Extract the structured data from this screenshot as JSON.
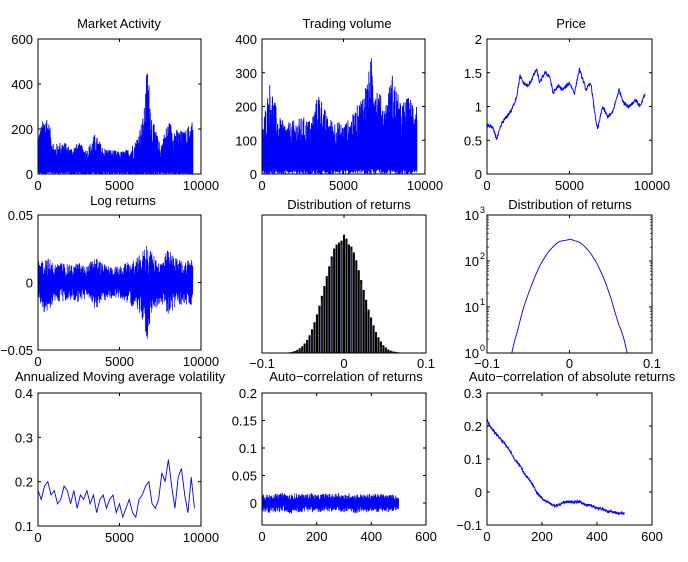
{
  "chart_data": [
    {
      "id": "market-activity",
      "type": "line",
      "title": "Market Activity",
      "xlim": [
        0,
        10000
      ],
      "ylim": [
        0,
        600
      ],
      "xticks": [
        0,
        5000,
        10000
      ],
      "yticks": [
        0,
        200,
        400,
        600
      ],
      "color": "#0000ff",
      "series": [
        {
          "x": [
            0,
            500,
            1000,
            1500,
            2000,
            2500,
            3000,
            3500,
            4000,
            4500,
            5000,
            5500,
            6000,
            6500,
            6700,
            7000,
            7500,
            8000,
            8500,
            9000,
            9500
          ],
          "y": [
            180,
            280,
            130,
            150,
            120,
            140,
            110,
            180,
            120,
            110,
            100,
            110,
            150,
            270,
            500,
            250,
            130,
            240,
            200,
            190,
            250
          ]
        }
      ]
    },
    {
      "id": "trading-volume",
      "type": "line",
      "title": "Trading volume",
      "xlim": [
        0,
        10000
      ],
      "ylim": [
        0,
        400
      ],
      "xticks": [
        0,
        5000,
        10000
      ],
      "yticks": [
        0,
        100,
        200,
        300,
        400
      ],
      "color": "#0000ff",
      "series": [
        {
          "x": [
            0,
            500,
            1000,
            1500,
            2000,
            2500,
            3000,
            3500,
            4000,
            4500,
            5000,
            5500,
            6000,
            6500,
            6700,
            7000,
            7500,
            8000,
            8500,
            9000,
            9500
          ],
          "y": [
            140,
            280,
            170,
            150,
            160,
            170,
            160,
            250,
            170,
            160,
            150,
            170,
            220,
            290,
            350,
            280,
            200,
            300,
            210,
            230,
            220
          ]
        }
      ]
    },
    {
      "id": "price",
      "type": "line",
      "title": "Price",
      "xlim": [
        0,
        10000
      ],
      "ylim": [
        0,
        2
      ],
      "xticks": [
        0,
        5000,
        10000
      ],
      "yticks": [
        0,
        0.5,
        1,
        1.5,
        2
      ],
      "color": "#0000ff",
      "series": [
        {
          "x": [
            0,
            300,
            600,
            900,
            1200,
            1500,
            1800,
            2000,
            2200,
            2500,
            2800,
            3000,
            3200,
            3500,
            3800,
            4000,
            4300,
            4600,
            5000,
            5300,
            5600,
            6000,
            6300,
            6500,
            6700,
            7000,
            7300,
            7600,
            8000,
            8300,
            8600,
            9000,
            9300,
            9600
          ],
          "y": [
            0.72,
            0.7,
            0.52,
            0.75,
            0.85,
            0.95,
            1.15,
            1.45,
            1.35,
            1.3,
            1.45,
            1.55,
            1.35,
            1.5,
            1.45,
            1.2,
            1.3,
            1.25,
            1.35,
            1.2,
            1.55,
            1.25,
            1.35,
            0.95,
            0.65,
            1.0,
            0.85,
            0.9,
            1.25,
            1.05,
            1.0,
            1.1,
            1.0,
            1.2
          ]
        }
      ]
    },
    {
      "id": "log-returns",
      "type": "line",
      "title": "Log returns",
      "xlim": [
        0,
        10000
      ],
      "ylim": [
        -0.05,
        0.05
      ],
      "xticks": [
        0,
        5000,
        10000
      ],
      "yticks": [
        -0.05,
        0,
        0.05
      ],
      "ytick_labels": [
        "−0.05",
        "0",
        "0.05"
      ],
      "color": "#0000ff",
      "series": [
        {
          "x": [
            0,
            500,
            1000,
            1500,
            2000,
            2500,
            3000,
            3500,
            4000,
            4500,
            5000,
            5500,
            6000,
            6500,
            6700,
            7000,
            7500,
            8000,
            8500,
            9000,
            9500
          ],
          "y_upper": [
            0.015,
            0.02,
            0.014,
            0.015,
            0.013,
            0.015,
            0.012,
            0.02,
            0.014,
            0.012,
            0.012,
            0.015,
            0.017,
            0.025,
            0.032,
            0.022,
            0.015,
            0.025,
            0.018,
            0.016,
            0.02
          ],
          "y_lower": [
            -0.015,
            -0.025,
            -0.014,
            -0.015,
            -0.013,
            -0.015,
            -0.012,
            -0.02,
            -0.014,
            -0.012,
            -0.012,
            -0.015,
            -0.02,
            -0.03,
            -0.045,
            -0.022,
            -0.015,
            -0.025,
            -0.018,
            -0.016,
            -0.02
          ]
        }
      ]
    },
    {
      "id": "distribution-linear",
      "type": "bar",
      "title": "Distribution of  returns",
      "xlim": [
        -0.1,
        0.1
      ],
      "ylim": [
        0,
        350
      ],
      "xticks": [
        -0.1,
        0,
        0.1
      ],
      "xtick_labels": [
        "−0.1",
        "0",
        "0.1"
      ],
      "yticks": [],
      "color": "#000000",
      "bins": [
        -0.066,
        -0.063,
        -0.06,
        -0.057,
        -0.054,
        -0.051,
        -0.048,
        -0.045,
        -0.042,
        -0.039,
        -0.036,
        -0.033,
        -0.03,
        -0.027,
        -0.024,
        -0.021,
        -0.018,
        -0.015,
        -0.012,
        -0.009,
        -0.006,
        -0.003,
        0,
        0.003,
        0.006,
        0.009,
        0.012,
        0.015,
        0.018,
        0.021,
        0.024,
        0.027,
        0.03,
        0.033,
        0.036,
        0.039,
        0.042,
        0.045,
        0.048,
        0.051,
        0.054,
        0.057,
        0.06,
        0.063,
        0.066
      ],
      "values": [
        2,
        3,
        5,
        8,
        12,
        17,
        24,
        33,
        45,
        60,
        78,
        98,
        120,
        145,
        170,
        195,
        220,
        245,
        265,
        275,
        280,
        285,
        300,
        290,
        275,
        270,
        255,
        235,
        210,
        185,
        160,
        135,
        110,
        90,
        70,
        53,
        40,
        29,
        20,
        14,
        9,
        6,
        4,
        3,
        2
      ]
    },
    {
      "id": "distribution-log",
      "type": "line",
      "title": "Distribution of  returns",
      "yscale": "log",
      "xlim": [
        -0.1,
        0.1
      ],
      "ylim": [
        1,
        1000
      ],
      "xticks": [
        -0.1,
        0,
        0.1
      ],
      "xtick_labels": [
        "−0.1",
        "0",
        "0.1"
      ],
      "yticks": [
        1,
        10,
        100,
        1000
      ],
      "ytick_labels": [
        "10",
        "10",
        "10",
        "10"
      ],
      "ytick_exponents": [
        "0",
        "1",
        "2",
        "3"
      ],
      "color": "#0000ff",
      "series": [
        {
          "x": [
            -0.07,
            -0.066,
            -0.063,
            -0.06,
            -0.057,
            -0.054,
            -0.051,
            -0.048,
            -0.045,
            -0.042,
            -0.039,
            -0.036,
            -0.033,
            -0.03,
            -0.027,
            -0.024,
            -0.021,
            -0.018,
            -0.015,
            -0.012,
            -0.009,
            -0.006,
            -0.003,
            0,
            0.003,
            0.006,
            0.009,
            0.012,
            0.015,
            0.018,
            0.021,
            0.024,
            0.027,
            0.03,
            0.033,
            0.036,
            0.039,
            0.042,
            0.045,
            0.048,
            0.051,
            0.054,
            0.057,
            0.06,
            0.063,
            0.066,
            0.07
          ],
          "y": [
            1,
            2,
            3,
            5,
            8,
            12,
            17,
            24,
            33,
            45,
            60,
            78,
            98,
            120,
            145,
            170,
            195,
            220,
            245,
            265,
            275,
            280,
            285,
            300,
            290,
            275,
            270,
            255,
            235,
            210,
            185,
            160,
            135,
            110,
            90,
            70,
            53,
            40,
            29,
            20,
            14,
            9,
            6,
            4,
            3,
            2,
            1
          ]
        }
      ]
    },
    {
      "id": "annualized-volatility",
      "type": "line",
      "title": "Annualized Moving average volatility",
      "xlim": [
        0,
        10000
      ],
      "ylim": [
        0.1,
        0.4
      ],
      "xticks": [
        0,
        5000,
        10000
      ],
      "yticks": [
        0.1,
        0.2,
        0.3,
        0.4
      ],
      "color": "#0000ff",
      "series": [
        {
          "x": [
            0,
            200,
            400,
            600,
            800,
            1000,
            1200,
            1400,
            1600,
            1800,
            2000,
            2200,
            2400,
            2600,
            2800,
            3000,
            3200,
            3400,
            3600,
            3800,
            4000,
            4200,
            4400,
            4600,
            4800,
            5000,
            5200,
            5400,
            5600,
            5800,
            6000,
            6200,
            6400,
            6600,
            6800,
            7000,
            7200,
            7400,
            7600,
            7800,
            8000,
            8200,
            8400,
            8600,
            8800,
            9000,
            9200,
            9400,
            9600
          ],
          "y": [
            0.18,
            0.16,
            0.19,
            0.2,
            0.17,
            0.18,
            0.15,
            0.16,
            0.19,
            0.18,
            0.15,
            0.18,
            0.14,
            0.17,
            0.16,
            0.18,
            0.15,
            0.17,
            0.13,
            0.16,
            0.17,
            0.14,
            0.16,
            0.17,
            0.13,
            0.15,
            0.12,
            0.14,
            0.16,
            0.13,
            0.12,
            0.16,
            0.17,
            0.19,
            0.2,
            0.15,
            0.14,
            0.16,
            0.22,
            0.2,
            0.25,
            0.19,
            0.14,
            0.21,
            0.23,
            0.17,
            0.13,
            0.21,
            0.14
          ]
        }
      ]
    },
    {
      "id": "autocorr-returns",
      "type": "line",
      "title": "Auto−correlation of  returns",
      "xlim": [
        0,
        600
      ],
      "ylim": [
        -0.04,
        0.2
      ],
      "xticks": [
        0,
        200,
        400,
        600
      ],
      "yticks": [
        0,
        0.05,
        0.1,
        0.15,
        0.2
      ],
      "color": "#0000ff",
      "series": [
        {
          "x": [
            0,
            20,
            40,
            60,
            80,
            100,
            120,
            140,
            160,
            180,
            200,
            220,
            240,
            260,
            280,
            300,
            320,
            340,
            360,
            380,
            400,
            420,
            440,
            460,
            480,
            500
          ],
          "y_upper": [
            0.02,
            0.015,
            0.018,
            0.016,
            0.02,
            0.015,
            0.018,
            0.017,
            0.016,
            0.019,
            0.015,
            0.017,
            0.018,
            0.016,
            0.02,
            0.015,
            0.018,
            0.016,
            0.017,
            0.015,
            0.018,
            0.016,
            0.017,
            0.015,
            0.016,
            0.012
          ],
          "y_lower": [
            -0.015,
            -0.02,
            -0.016,
            -0.018,
            -0.015,
            -0.022,
            -0.016,
            -0.018,
            -0.015,
            -0.017,
            -0.016,
            -0.019,
            -0.015,
            -0.017,
            -0.016,
            -0.018,
            -0.015,
            -0.02,
            -0.016,
            -0.018,
            -0.015,
            -0.017,
            -0.016,
            -0.018,
            -0.015,
            -0.012
          ]
        }
      ]
    },
    {
      "id": "autocorr-absolute",
      "type": "line",
      "title": "Auto−correlation of  absolute returns",
      "xlim": [
        0,
        600
      ],
      "ylim": [
        -0.1,
        0.3
      ],
      "xticks": [
        0,
        200,
        400,
        600
      ],
      "yticks": [
        -0.1,
        0,
        0.1,
        0.2,
        0.3
      ],
      "ytick_labels": [
        "−0.1",
        "0",
        "0.1",
        "0.2",
        "0.3"
      ],
      "color": "#0000ff",
      "series": [
        {
          "x": [
            0,
            10,
            20,
            40,
            60,
            80,
            100,
            120,
            140,
            160,
            180,
            200,
            220,
            240,
            260,
            280,
            300,
            320,
            340,
            360,
            380,
            400,
            420,
            440,
            460,
            480,
            500
          ],
          "y": [
            0.22,
            0.2,
            0.19,
            0.17,
            0.15,
            0.13,
            0.1,
            0.08,
            0.05,
            0.03,
            0.0,
            -0.02,
            -0.03,
            -0.04,
            -0.04,
            -0.03,
            -0.03,
            -0.03,
            -0.03,
            -0.04,
            -0.04,
            -0.05,
            -0.05,
            -0.06,
            -0.06,
            -0.065,
            -0.065
          ]
        }
      ]
    }
  ]
}
